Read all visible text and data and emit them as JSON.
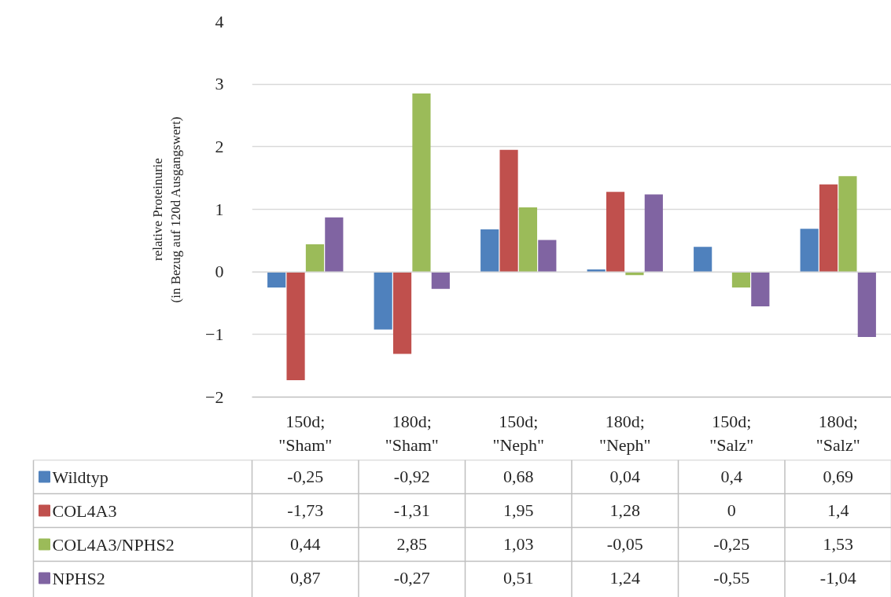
{
  "chart_data": {
    "type": "bar",
    "ylabel": "relative Proteinurie\n(in Bezug auf 120d Ausgangswert)",
    "categories": [
      "150d; \"Sham\"",
      "180d; \"Sham\"",
      "150d; \"Neph\"",
      "180d; \"Neph\"",
      "150d; \"Salz\"",
      "180d; \"Salz\""
    ],
    "series": [
      {
        "name": "Wildtyp",
        "color": "#4f81bd",
        "values": [
          -0.25,
          -0.92,
          0.68,
          0.04,
          0.4,
          0.69
        ],
        "value_labels": [
          "-0,25",
          "-0,92",
          "0,68",
          "0,04",
          "0,4",
          "0,69"
        ]
      },
      {
        "name": "COL4A3",
        "color": "#c0504d",
        "values": [
          -1.73,
          -1.31,
          1.95,
          1.28,
          0,
          1.4
        ],
        "value_labels": [
          "-1,73",
          "-1,31",
          "1,95",
          "1,28",
          "0",
          "1,4"
        ]
      },
      {
        "name": "COL4A3/NPHS2",
        "color": "#9bbb59",
        "values": [
          0.44,
          2.85,
          1.03,
          -0.05,
          -0.25,
          1.53
        ],
        "value_labels": [
          "0,44",
          "2,85",
          "1,03",
          "-0,05",
          "-0,25",
          "1,53"
        ]
      },
      {
        "name": "NPHS2",
        "color": "#8064a2",
        "values": [
          0.87,
          -0.27,
          0.51,
          1.24,
          -0.55,
          -1.04
        ],
        "value_labels": [
          "0,87",
          "-0,27",
          "0,51",
          "1,24",
          "-0,55",
          "-1,04"
        ]
      }
    ],
    "ylim": [
      -2,
      4
    ],
    "yticks": [
      -2,
      -1,
      0,
      1,
      2,
      3,
      4
    ],
    "grid": "y",
    "legend": "bottom"
  }
}
